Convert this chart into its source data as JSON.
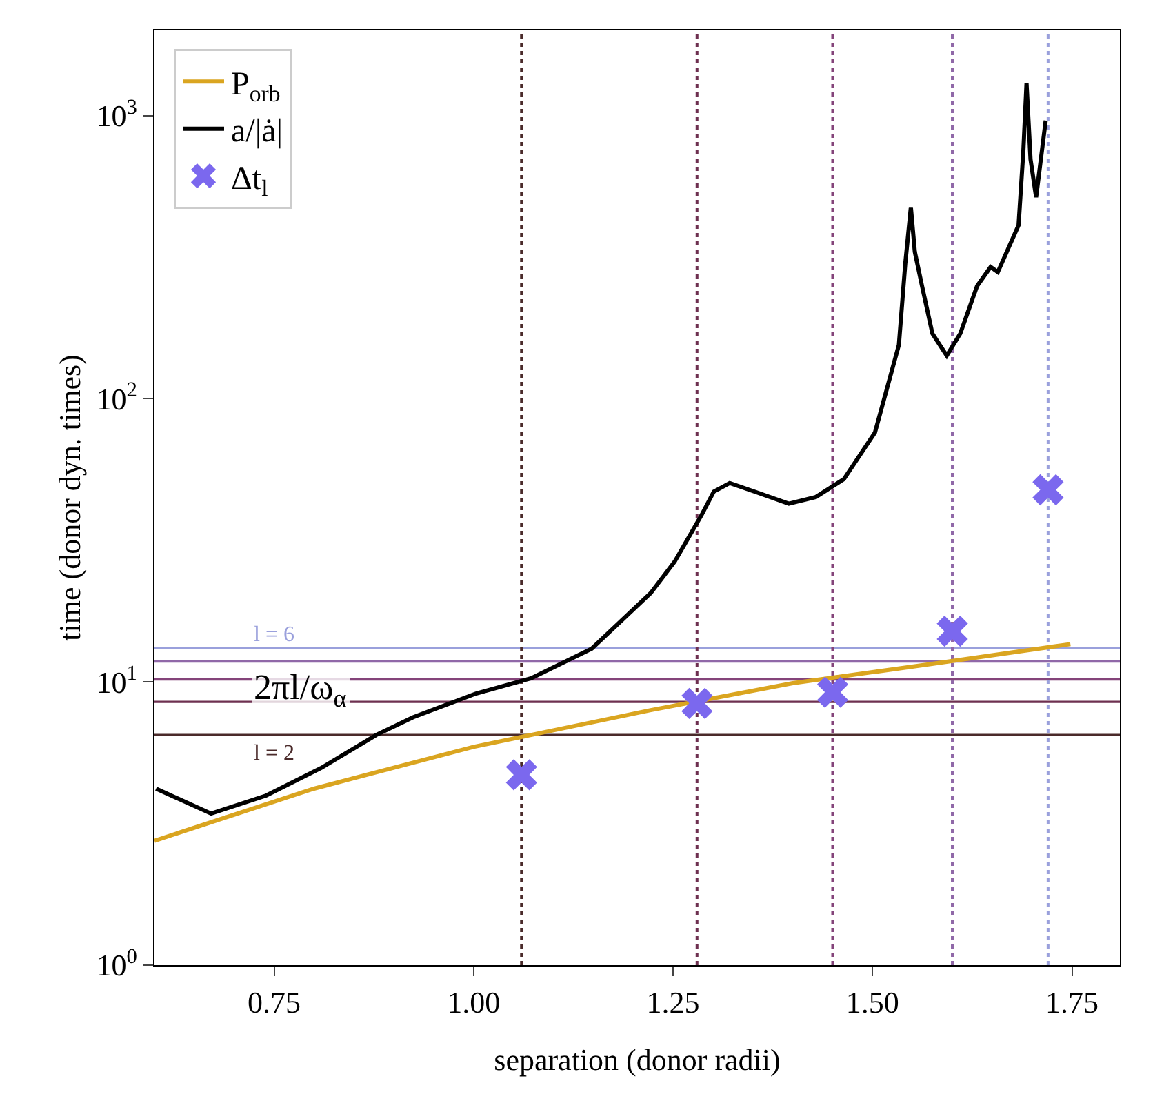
{
  "chart_data": {
    "type": "line",
    "xlabel": "separation (donor radii)",
    "ylabel": "time (donor dyn. times)",
    "xlim": [
      0.6,
      1.81
    ],
    "ylim": [
      1,
      2000
    ],
    "log": "y",
    "xticks": [
      0.75,
      {
        "value": 1,
        "label": "1.00"
      },
      1.25,
      {
        "value": 1.5,
        "label": "1.50"
      },
      1.75
    ],
    "yticks": [
      {
        "value": 1,
        "label": "10$^{0}$"
      },
      {
        "value": 10,
        "label": "10$^{1}$"
      },
      {
        "value": 100,
        "label": "10$^{2}$"
      },
      {
        "value": 1000,
        "label": "10$^{3}$"
      }
    ],
    "grid": false,
    "legend": "top left",
    "series": [
      {
        "name": "P$_{orb}$",
        "color": "#daa520",
        "marker": "none",
        "line_style": "solid",
        "x": [
          0.6,
          0.8,
          1.0,
          1.072,
          1.222,
          1.4,
          1.567,
          1.748
        ],
        "values": [
          2.75,
          4.2,
          5.9,
          6.5,
          7.95,
          9.9,
          11.5,
          13.6
        ]
      },
      {
        "name": "a/|ȧ|",
        "color": "#000000",
        "marker": "none",
        "line_style": "solid",
        "x": [
          0.602,
          0.671,
          0.74,
          0.809,
          0.878,
          0.924,
          1.003,
          1.072,
          1.148,
          1.222,
          1.252,
          1.286,
          1.301,
          1.321,
          1.355,
          1.395,
          1.429,
          1.464,
          1.503,
          1.533,
          1.541,
          1.548,
          1.553,
          1.562,
          1.575,
          1.593,
          1.61,
          1.631,
          1.648,
          1.657,
          1.683,
          1.689,
          1.693,
          1.698,
          1.705,
          1.717
        ],
        "values": [
          4.2,
          3.43,
          3.97,
          4.97,
          6.5,
          7.5,
          9.1,
          10.3,
          13.1,
          20.6,
          26.6,
          39,
          47,
          50.4,
          46.7,
          42.6,
          45,
          52,
          76,
          155,
          300,
          475,
          330,
          250,
          170,
          142,
          170,
          250,
          292,
          280,
          410,
          750,
          1300,
          700,
          515,
          960
        ]
      },
      {
        "name": "Δt$_{l}$",
        "type": "scatter",
        "color": "#7b68ee",
        "marker": "cross",
        "x": [
          1.06,
          1.28,
          1.45,
          1.6,
          1.72
        ],
        "values": [
          4.7,
          8.4,
          9.2,
          15.1,
          47.7
        ]
      }
    ],
    "ref_lines": [
      {
        "axis": "y",
        "value": 6.5,
        "color": "#4a2a2a",
        "line_style": "solid"
      },
      {
        "axis": "y",
        "value": 8.5,
        "color": "#6e3050",
        "line_style": "solid"
      },
      {
        "axis": "y",
        "value": 10.2,
        "color": "#84447a",
        "line_style": "solid"
      },
      {
        "axis": "y",
        "value": 11.8,
        "color": "#9068a8",
        "line_style": "solid"
      },
      {
        "axis": "y",
        "value": 13.2,
        "color": "#9aa0dc",
        "line_style": "solid"
      },
      {
        "axis": "x",
        "value": 1.06,
        "color": "#4a2a2a",
        "line_style": "dotted"
      },
      {
        "axis": "x",
        "value": 1.28,
        "color": "#6e3050",
        "line_style": "dotted"
      },
      {
        "axis": "x",
        "value": 1.45,
        "color": "#84447a",
        "line_style": "dotted"
      },
      {
        "axis": "x",
        "value": 1.6,
        "color": "#9068a8",
        "line_style": "dotted"
      },
      {
        "axis": "x",
        "value": 1.72,
        "color": "#9aa0dc",
        "line_style": "dotted"
      }
    ],
    "annotations": [
      "l = 6",
      "2πl/ω$_{α}$",
      "l = 2"
    ]
  }
}
